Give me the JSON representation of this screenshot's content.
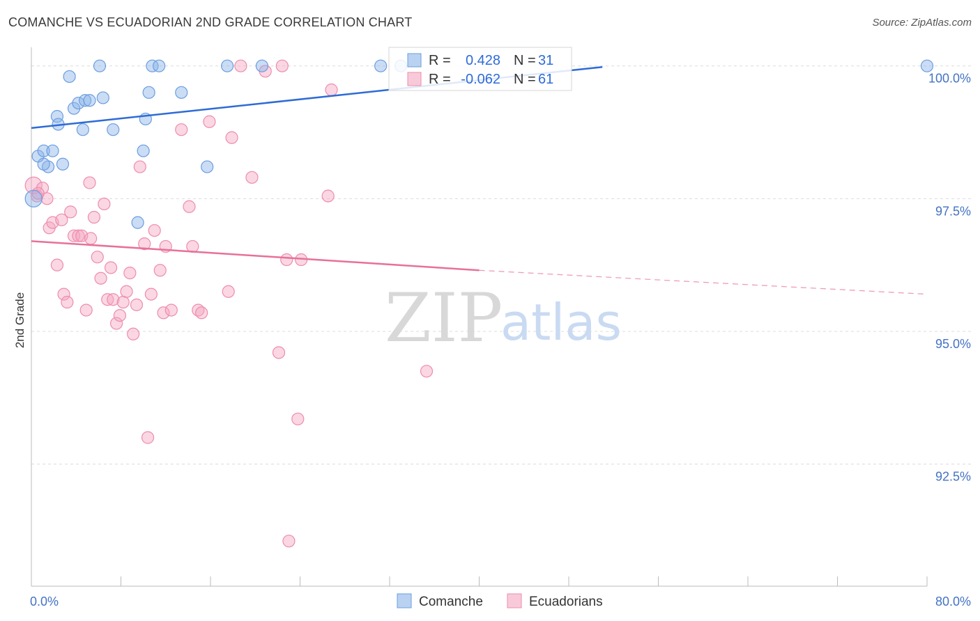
{
  "title": "COMANCHE VS ECUADORIAN 2ND GRADE CORRELATION CHART",
  "source": "Source: ZipAtlas.com",
  "watermark": {
    "zip": "ZIP",
    "atlas": "atlas"
  },
  "chart_data": {
    "type": "scatter",
    "xlabel": "",
    "ylabel": "2nd Grade",
    "xlim": [
      0,
      80
    ],
    "ylim": [
      90.2,
      100.35
    ],
    "x_tick_labels": [
      {
        "value": 0,
        "label": "0.0%"
      },
      {
        "value": 80,
        "label": "80.0%"
      }
    ],
    "y_ticks": [
      {
        "value": 100.0,
        "label": "100.0%"
      },
      {
        "value": 97.5,
        "label": "97.5%"
      },
      {
        "value": 95.0,
        "label": "95.0%"
      },
      {
        "value": 92.5,
        "label": "92.5%"
      }
    ],
    "x_minor_ticks": [
      8,
      16,
      24,
      32,
      40,
      48,
      56,
      64,
      72,
      80
    ],
    "grid": true,
    "colors": {
      "comanche": "#8ab4e8",
      "comanche_line": "#2e6bd6",
      "ecuadorian": "#f4a7c0",
      "ecuadorian_line": "#e8709a"
    },
    "legend": {
      "position": "top-center",
      "entries": [
        {
          "r_label": "R =",
          "r_value": "0.428",
          "n_label": "N =",
          "n_value": "31"
        },
        {
          "r_label": "R =",
          "r_value": "-0.062",
          "n_label": "N =",
          "n_value": "61"
        }
      ]
    },
    "bottom_legend": [
      "Comanche",
      "Ecuadorians"
    ],
    "series": [
      {
        "name": "Comanche",
        "points": [
          [
            0.2,
            97.5
          ],
          [
            0.6,
            98.3
          ],
          [
            1.1,
            98.4
          ],
          [
            1.5,
            98.1
          ],
          [
            1.9,
            98.4
          ],
          [
            2.3,
            99.05
          ],
          [
            2.8,
            98.15
          ],
          [
            3.4,
            99.8
          ],
          [
            3.8,
            99.2
          ],
          [
            4.2,
            99.3
          ],
          [
            4.8,
            99.35
          ],
          [
            5.2,
            99.35
          ],
          [
            6.1,
            100.0
          ],
          [
            6.4,
            99.4
          ],
          [
            7.3,
            98.8
          ],
          [
            9.5,
            97.05
          ],
          [
            10.0,
            98.4
          ],
          [
            10.2,
            99.0
          ],
          [
            10.5,
            99.5
          ],
          [
            10.8,
            100.0
          ],
          [
            11.4,
            100.0
          ],
          [
            13.4,
            99.5
          ],
          [
            15.7,
            98.1
          ],
          [
            17.5,
            100.0
          ],
          [
            20.6,
            100.0
          ],
          [
            31.2,
            100.0
          ],
          [
            33.0,
            100.0
          ],
          [
            80.0,
            100.0
          ],
          [
            4.6,
            98.8
          ],
          [
            1.1,
            98.15
          ],
          [
            2.4,
            98.9
          ]
        ],
        "trend": {
          "x0": 0,
          "y0": 98.83,
          "x1": 51,
          "y1": 99.98,
          "dashed_to": null
        }
      },
      {
        "name": "Ecuadorians",
        "points": [
          [
            0.2,
            97.75
          ],
          [
            0.5,
            97.55
          ],
          [
            1.0,
            97.7
          ],
          [
            1.4,
            97.5
          ],
          [
            1.6,
            96.95
          ],
          [
            1.9,
            97.05
          ],
          [
            2.3,
            96.25
          ],
          [
            2.7,
            97.1
          ],
          [
            2.9,
            95.7
          ],
          [
            3.2,
            95.55
          ],
          [
            3.5,
            97.25
          ],
          [
            3.8,
            96.8
          ],
          [
            4.2,
            96.8
          ],
          [
            4.5,
            96.8
          ],
          [
            4.9,
            95.4
          ],
          [
            5.2,
            97.8
          ],
          [
            5.3,
            96.75
          ],
          [
            5.6,
            97.15
          ],
          [
            5.9,
            96.4
          ],
          [
            6.2,
            96.0
          ],
          [
            6.5,
            97.4
          ],
          [
            6.8,
            95.6
          ],
          [
            7.1,
            96.2
          ],
          [
            7.3,
            95.6
          ],
          [
            7.6,
            95.15
          ],
          [
            7.9,
            95.3
          ],
          [
            8.2,
            95.55
          ],
          [
            8.5,
            95.75
          ],
          [
            8.8,
            96.1
          ],
          [
            9.1,
            94.95
          ],
          [
            9.4,
            95.5
          ],
          [
            9.7,
            98.1
          ],
          [
            10.1,
            96.65
          ],
          [
            10.4,
            93.0
          ],
          [
            10.7,
            95.7
          ],
          [
            11.0,
            96.9
          ],
          [
            11.5,
            96.15
          ],
          [
            11.8,
            95.35
          ],
          [
            12.0,
            96.6
          ],
          [
            12.5,
            95.4
          ],
          [
            13.4,
            98.8
          ],
          [
            14.1,
            97.35
          ],
          [
            14.4,
            96.6
          ],
          [
            14.9,
            95.4
          ],
          [
            15.2,
            95.35
          ],
          [
            15.9,
            98.95
          ],
          [
            17.6,
            95.75
          ],
          [
            17.9,
            98.65
          ],
          [
            18.7,
            100.0
          ],
          [
            19.7,
            97.9
          ],
          [
            20.9,
            99.9
          ],
          [
            22.1,
            94.6
          ],
          [
            22.4,
            100.0
          ],
          [
            22.8,
            96.35
          ],
          [
            23.0,
            91.05
          ],
          [
            23.8,
            93.35
          ],
          [
            24.1,
            96.35
          ],
          [
            26.5,
            97.55
          ],
          [
            26.8,
            99.55
          ],
          [
            35.3,
            94.25
          ],
          [
            0.6,
            97.6
          ]
        ],
        "trend": {
          "x0": 0,
          "y0": 96.7,
          "x1": 40,
          "y1": 96.15,
          "dashed_to": {
            "x": 80,
            "y": 95.7
          }
        }
      }
    ]
  }
}
